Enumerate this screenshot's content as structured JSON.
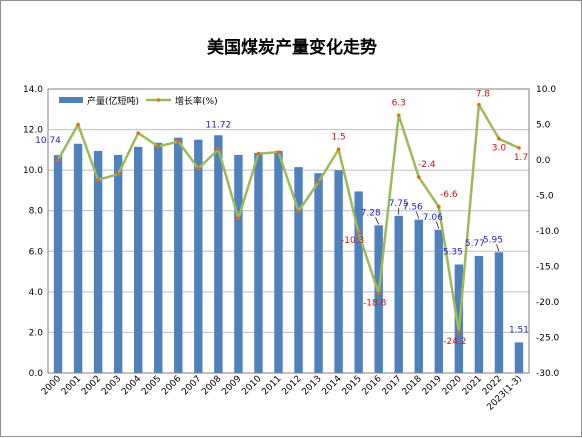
{
  "chart_data": {
    "type": "bar",
    "title": "美国煤炭产量变化走势",
    "categories": [
      "2000",
      "2001",
      "2002",
      "2003",
      "2004",
      "2005",
      "2006",
      "2007",
      "2008",
      "2009",
      "2010",
      "2011",
      "2012",
      "2013",
      "2014",
      "2015",
      "2016",
      "2017",
      "2018",
      "2019",
      "2020",
      "2021",
      "2022",
      "2023(1-3)"
    ],
    "y_left": {
      "min": 0.0,
      "max": 14.0,
      "step": 2.0,
      "tick_labels": [
        "0.0",
        "2.0",
        "4.0",
        "6.0",
        "8.0",
        "10.0",
        "12.0",
        "14.0"
      ]
    },
    "y_right": {
      "min": -30.0,
      "max": 10.0,
      "step": 5.0,
      "tick_labels": [
        "-30.0",
        "-25.0",
        "-20.0",
        "-15.0",
        "-10.0",
        "-5.0",
        "0.0",
        "5.0",
        "10.0"
      ]
    },
    "grid": true,
    "legend": {
      "position": "top-left"
    },
    "series": [
      {
        "name": "产量(亿短吨)",
        "type": "bar",
        "axis": "left",
        "color": "#4f81bd",
        "values": [
          10.74,
          11.3,
          10.95,
          10.75,
          11.15,
          11.35,
          11.6,
          11.5,
          11.72,
          10.75,
          10.85,
          10.95,
          10.15,
          9.85,
          10.0,
          8.95,
          7.28,
          7.75,
          7.56,
          7.06,
          5.35,
          5.77,
          5.95,
          1.51
        ],
        "labels": [
          "10.74",
          "",
          "",
          "",
          "",
          "",
          "",
          "",
          "11.72",
          "",
          "",
          "",
          "",
          "",
          "",
          "",
          "7.28",
          "7.75",
          "7.56",
          "7.06",
          "5.35",
          "5.77",
          "5.95",
          "1.51"
        ]
      },
      {
        "name": "增长率(%)",
        "type": "line",
        "axis": "right",
        "color": "#9bbb59",
        "marker_color": "#e46c0a",
        "values": [
          0.0,
          5.0,
          -2.8,
          -2.0,
          3.8,
          1.9,
          2.6,
          -1.2,
          1.5,
          -8.2,
          0.9,
          1.1,
          -7.2,
          -3.1,
          1.5,
          -10.3,
          -18.8,
          6.3,
          -2.4,
          -6.6,
          -24.2,
          7.8,
          3.0,
          1.7
        ],
        "labels": [
          "",
          "",
          "",
          "",
          "",
          "",
          "",
          "",
          "",
          "",
          "",
          "",
          "",
          "",
          "1.5",
          "-10.3",
          "-18.8",
          "6.3",
          "-2.4",
          "-6.6",
          "-24.2",
          "7.8",
          "3.0",
          "1.7"
        ]
      }
    ]
  }
}
